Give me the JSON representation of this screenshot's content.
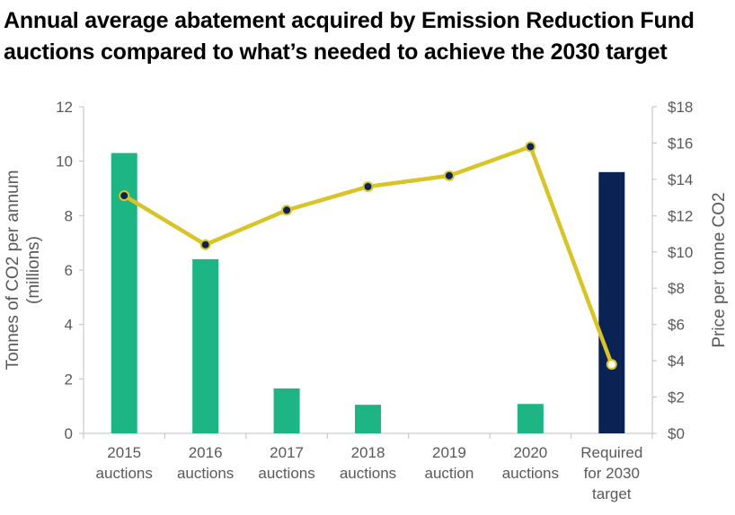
{
  "title_lines": [
    "Annual average abatement acquired by Emission Reduction Fund",
    "auctions compared to what’s needed to achieve the 2030 target"
  ],
  "colors": {
    "bar_auction": "#1db584",
    "bar_target": "#0b2254",
    "line": "#d9c427",
    "marker": "#0b2254",
    "axis": "#bfbfbf",
    "text": "#595959"
  },
  "chart_data": {
    "type": "bar+line",
    "categories": [
      [
        "2015",
        "auctions"
      ],
      [
        "2016",
        "auctions"
      ],
      [
        "2017",
        "auctions"
      ],
      [
        "2018",
        "auctions"
      ],
      [
        "2019",
        "auction"
      ],
      [
        "2020",
        "auctions"
      ],
      [
        "Required",
        "for 2030",
        "target"
      ]
    ],
    "bars": {
      "axis": "left",
      "values": [
        10.3,
        6.4,
        1.65,
        1.05,
        0,
        1.08,
        9.6
      ],
      "highlight_index": 6
    },
    "line": {
      "axis": "right",
      "values": [
        13.1,
        10.4,
        12.3,
        13.6,
        14.2,
        15.8,
        3.8
      ]
    },
    "left_axis": {
      "label_lines": [
        "Tonnes of CO2 per annum",
        "(millions)"
      ],
      "ylim": [
        0,
        12
      ],
      "ticks": [
        "0",
        "2",
        "4",
        "6",
        "8",
        "10",
        "12"
      ]
    },
    "right_axis": {
      "label": "Price per tonne CO2",
      "ylim": [
        0,
        18
      ],
      "ticks": [
        "$0",
        "$2",
        "$4",
        "$6",
        "$8",
        "$10",
        "$12",
        "$14",
        "$16",
        "$18"
      ]
    },
    "grid": false,
    "legend": "none"
  }
}
